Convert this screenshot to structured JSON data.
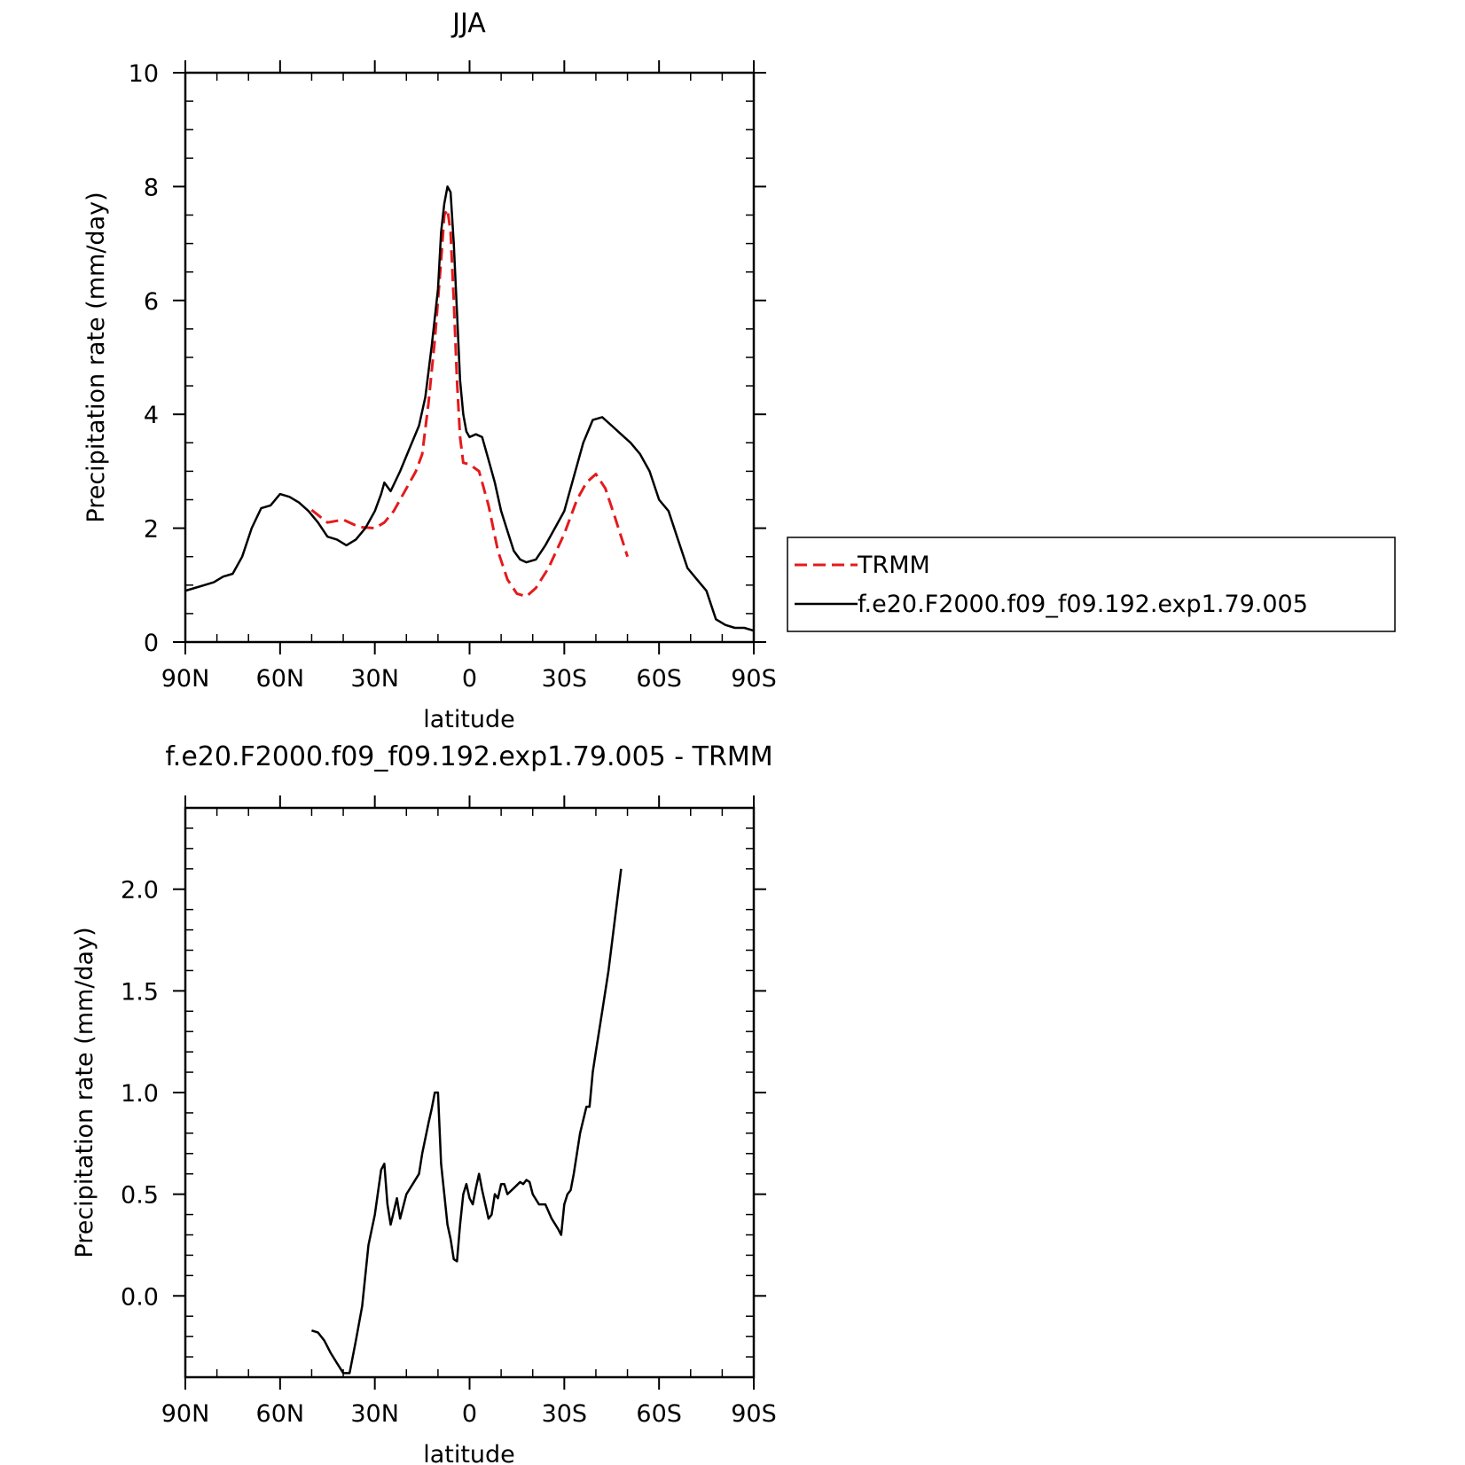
{
  "chart_data": [
    {
      "type": "line",
      "title": "JJA",
      "xlabel": "latitude",
      "ylabel": "Precipitation rate (mm/day)",
      "xlim": [
        90,
        -90
      ],
      "ylim": [
        0,
        10
      ],
      "x_ticks": [
        {
          "value": 90,
          "label": "90N"
        },
        {
          "value": 60,
          "label": "60N"
        },
        {
          "value": 30,
          "label": "30N"
        },
        {
          "value": 0,
          "label": "0"
        },
        {
          "value": -30,
          "label": "30S"
        },
        {
          "value": -60,
          "label": "60S"
        },
        {
          "value": -90,
          "label": "90S"
        }
      ],
      "y_ticks": [
        {
          "value": 0,
          "label": "0"
        },
        {
          "value": 2,
          "label": "2"
        },
        {
          "value": 4,
          "label": "4"
        },
        {
          "value": 6,
          "label": "6"
        },
        {
          "value": 8,
          "label": "8"
        },
        {
          "value": 10,
          "label": "10"
        }
      ],
      "grid": false,
      "legend_position": "right",
      "series": [
        {
          "name": "TRMM",
          "color": "#e41a1c",
          "dash": "dashed",
          "points": [
            [
              50,
              2.32
            ],
            [
              45,
              2.1
            ],
            [
              40,
              2.15
            ],
            [
              35,
              2.02
            ],
            [
              30,
              2.0
            ],
            [
              27,
              2.1
            ],
            [
              24,
              2.3
            ],
            [
              20,
              2.7
            ],
            [
              17,
              3.0
            ],
            [
              15,
              3.3
            ],
            [
              13,
              4.2
            ],
            [
              11,
              5.3
            ],
            [
              9,
              6.7
            ],
            [
              8,
              7.5
            ],
            [
              7,
              7.6
            ],
            [
              6,
              7.2
            ],
            [
              5,
              6.0
            ],
            [
              4,
              4.6
            ],
            [
              3,
              3.6
            ],
            [
              2,
              3.15
            ],
            [
              0,
              3.12
            ],
            [
              -3,
              3.0
            ],
            [
              -6,
              2.4
            ],
            [
              -9,
              1.6
            ],
            [
              -12,
              1.1
            ],
            [
              -15,
              0.85
            ],
            [
              -18,
              0.8
            ],
            [
              -21,
              0.95
            ],
            [
              -25,
              1.3
            ],
            [
              -30,
              1.9
            ],
            [
              -34,
              2.5
            ],
            [
              -37,
              2.8
            ],
            [
              -40,
              2.95
            ],
            [
              -43,
              2.7
            ],
            [
              -46,
              2.2
            ],
            [
              -50,
              1.5
            ]
          ]
        },
        {
          "name": "f.e20.F2000.f09_f09.192.exp1.79.005",
          "color": "#000000",
          "dash": "solid",
          "points": [
            [
              90,
              0.9
            ],
            [
              87,
              0.95
            ],
            [
              84,
              1.0
            ],
            [
              81,
              1.05
            ],
            [
              78,
              1.15
            ],
            [
              75,
              1.2
            ],
            [
              72,
              1.5
            ],
            [
              69,
              2.0
            ],
            [
              66,
              2.35
            ],
            [
              63,
              2.4
            ],
            [
              60,
              2.6
            ],
            [
              57,
              2.55
            ],
            [
              54,
              2.45
            ],
            [
              51,
              2.3
            ],
            [
              48,
              2.1
            ],
            [
              45,
              1.85
            ],
            [
              42,
              1.8
            ],
            [
              39,
              1.7
            ],
            [
              36,
              1.8
            ],
            [
              33,
              2.0
            ],
            [
              30,
              2.3
            ],
            [
              28,
              2.6
            ],
            [
              27,
              2.8
            ],
            [
              25,
              2.65
            ],
            [
              22,
              3.0
            ],
            [
              19,
              3.4
            ],
            [
              16,
              3.8
            ],
            [
              14,
              4.3
            ],
            [
              12,
              5.2
            ],
            [
              10,
              6.2
            ],
            [
              9,
              7.2
            ],
            [
              8,
              7.7
            ],
            [
              7,
              8.0
            ],
            [
              6,
              7.9
            ],
            [
              5,
              7.0
            ],
            [
              4,
              5.8
            ],
            [
              3,
              4.6
            ],
            [
              2,
              4.0
            ],
            [
              1,
              3.7
            ],
            [
              0,
              3.6
            ],
            [
              -2,
              3.65
            ],
            [
              -4,
              3.6
            ],
            [
              -6,
              3.2
            ],
            [
              -8,
              2.8
            ],
            [
              -10,
              2.3
            ],
            [
              -12,
              1.95
            ],
            [
              -14,
              1.6
            ],
            [
              -16,
              1.45
            ],
            [
              -18,
              1.4
            ],
            [
              -21,
              1.45
            ],
            [
              -24,
              1.7
            ],
            [
              -27,
              2.0
            ],
            [
              -30,
              2.3
            ],
            [
              -33,
              2.9
            ],
            [
              -36,
              3.5
            ],
            [
              -39,
              3.9
            ],
            [
              -42,
              3.95
            ],
            [
              -45,
              3.8
            ],
            [
              -48,
              3.65
            ],
            [
              -51,
              3.5
            ],
            [
              -54,
              3.3
            ],
            [
              -57,
              3.0
            ],
            [
              -60,
              2.5
            ],
            [
              -63,
              2.3
            ],
            [
              -66,
              1.8
            ],
            [
              -69,
              1.3
            ],
            [
              -72,
              1.1
            ],
            [
              -75,
              0.9
            ],
            [
              -78,
              0.4
            ],
            [
              -81,
              0.3
            ],
            [
              -84,
              0.25
            ],
            [
              -87,
              0.25
            ],
            [
              -90,
              0.2
            ]
          ]
        }
      ]
    },
    {
      "type": "line",
      "title": "f.e20.F2000.f09_f09.192.exp1.79.005 - TRMM",
      "xlabel": "latitude",
      "ylabel": "Precipitation rate (mm/day)",
      "xlim": [
        90,
        -90
      ],
      "ylim": [
        -0.4,
        2.4
      ],
      "x_ticks": [
        {
          "value": 90,
          "label": "90N"
        },
        {
          "value": 60,
          "label": "60N"
        },
        {
          "value": 30,
          "label": "30N"
        },
        {
          "value": 0,
          "label": "0"
        },
        {
          "value": -30,
          "label": "30S"
        },
        {
          "value": -60,
          "label": "60S"
        },
        {
          "value": -90,
          "label": "90S"
        }
      ],
      "y_ticks": [
        {
          "value": 0.0,
          "label": "0.0"
        },
        {
          "value": 0.5,
          "label": "0.5"
        },
        {
          "value": 1.0,
          "label": "1.0"
        },
        {
          "value": 1.5,
          "label": "1.5"
        },
        {
          "value": 2.0,
          "label": "2.0"
        }
      ],
      "grid": false,
      "series": [
        {
          "color": "#000000",
          "dash": "solid",
          "points": [
            [
              50,
              -0.17
            ],
            [
              48,
              -0.18
            ],
            [
              46,
              -0.22
            ],
            [
              44,
              -0.28
            ],
            [
              42,
              -0.33
            ],
            [
              40,
              -0.38
            ],
            [
              38,
              -0.38
            ],
            [
              36,
              -0.22
            ],
            [
              34,
              -0.05
            ],
            [
              32,
              0.25
            ],
            [
              30,
              0.4
            ],
            [
              28,
              0.62
            ],
            [
              27,
              0.65
            ],
            [
              26,
              0.45
            ],
            [
              25,
              0.35
            ],
            [
              23,
              0.48
            ],
            [
              22,
              0.38
            ],
            [
              20,
              0.5
            ],
            [
              18,
              0.55
            ],
            [
              16,
              0.6
            ],
            [
              15,
              0.7
            ],
            [
              13,
              0.85
            ],
            [
              12,
              0.92
            ],
            [
              11,
              1.0
            ],
            [
              10,
              1.0
            ],
            [
              9,
              0.65
            ],
            [
              8,
              0.5
            ],
            [
              7,
              0.35
            ],
            [
              6,
              0.28
            ],
            [
              5,
              0.18
            ],
            [
              4,
              0.17
            ],
            [
              3,
              0.35
            ],
            [
              2,
              0.5
            ],
            [
              1,
              0.55
            ],
            [
              0,
              0.48
            ],
            [
              -1,
              0.45
            ],
            [
              -2,
              0.53
            ],
            [
              -3,
              0.6
            ],
            [
              -4,
              0.52
            ],
            [
              -5,
              0.45
            ],
            [
              -6,
              0.38
            ],
            [
              -7,
              0.4
            ],
            [
              -8,
              0.5
            ],
            [
              -9,
              0.48
            ],
            [
              -10,
              0.55
            ],
            [
              -11,
              0.55
            ],
            [
              -12,
              0.5
            ],
            [
              -14,
              0.53
            ],
            [
              -16,
              0.56
            ],
            [
              -17,
              0.55
            ],
            [
              -18,
              0.57
            ],
            [
              -19,
              0.56
            ],
            [
              -20,
              0.5
            ],
            [
              -22,
              0.45
            ],
            [
              -24,
              0.45
            ],
            [
              -26,
              0.38
            ],
            [
              -28,
              0.33
            ],
            [
              -29,
              0.3
            ],
            [
              -30,
              0.45
            ],
            [
              -31,
              0.5
            ],
            [
              -32,
              0.52
            ],
            [
              -33,
              0.6
            ],
            [
              -35,
              0.8
            ],
            [
              -37,
              0.93
            ],
            [
              -38,
              0.93
            ],
            [
              -39,
              1.1
            ],
            [
              -40,
              1.2
            ],
            [
              -42,
              1.4
            ],
            [
              -44,
              1.6
            ],
            [
              -46,
              1.85
            ],
            [
              -48,
              2.1
            ]
          ]
        }
      ]
    }
  ]
}
